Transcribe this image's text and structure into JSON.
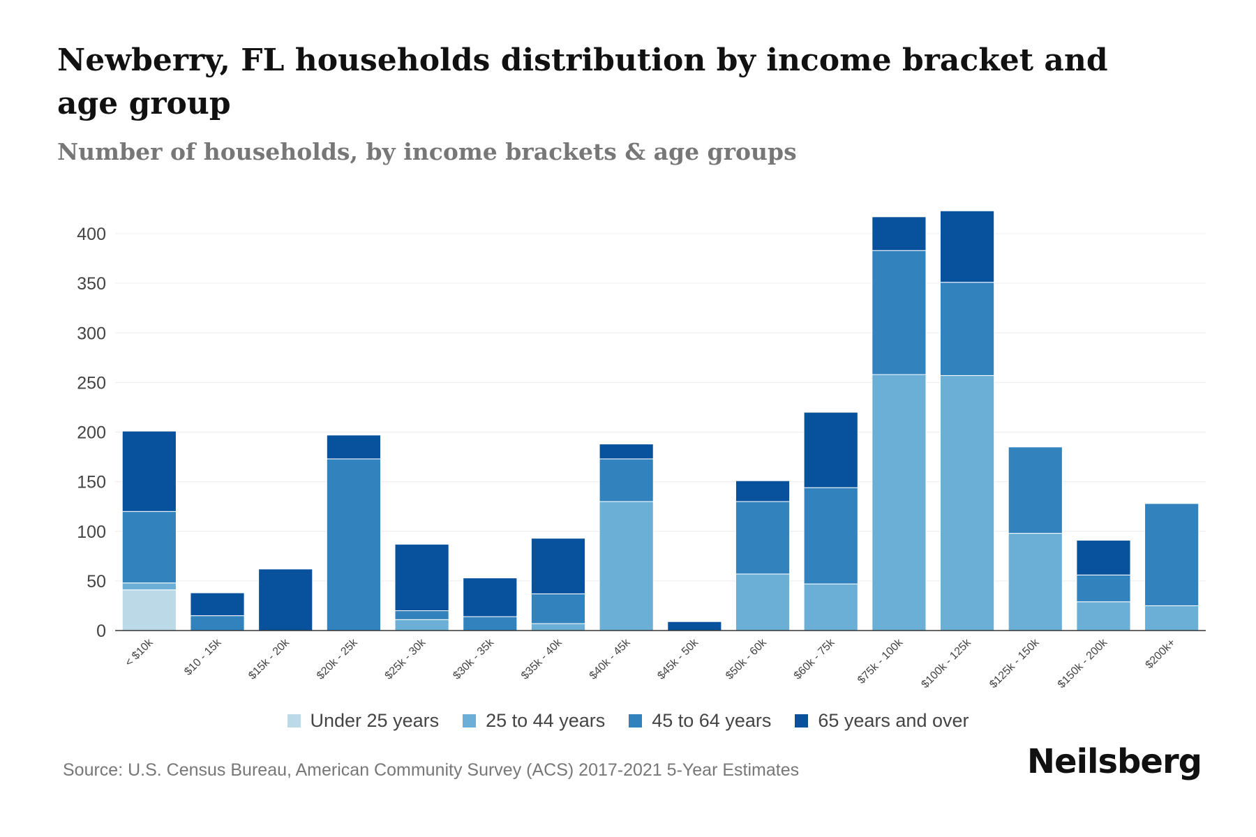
{
  "chart_data": {
    "type": "bar",
    "stacked": true,
    "title": "Newberry, FL households distribution by income bracket and age group",
    "subtitle": "Number of households, by income brackets & age groups",
    "xlabel": "",
    "ylabel": "",
    "ylim": [
      0,
      420
    ],
    "yticks": [
      0,
      50,
      100,
      150,
      200,
      250,
      300,
      350,
      400
    ],
    "grid": true,
    "legend_position": "bottom",
    "categories": [
      "< $10k",
      "$10 - 15k",
      "$15k - 20k",
      "$20k - 25k",
      "$25k - 30k",
      "$30k - 35k",
      "$35k - 40k",
      "$40k - 45k",
      "$45k - 50k",
      "$50k - 60k",
      "$60k - 75k",
      "$75k - 100k",
      "$100k - 125k",
      "$125k - 150k",
      "$150k - 200k",
      "$200k+"
    ],
    "series": [
      {
        "name": "Under 25 years",
        "color": "#bcd9e8",
        "values": [
          41,
          0,
          0,
          0,
          0,
          0,
          0,
          0,
          0,
          0,
          0,
          0,
          0,
          0,
          0,
          0
        ]
      },
      {
        "name": "25 to 44 years",
        "color": "#6baed6",
        "values": [
          7,
          0,
          0,
          0,
          11,
          0,
          7,
          130,
          0,
          57,
          47,
          258,
          257,
          98,
          29,
          25
        ]
      },
      {
        "name": "45 to 64 years",
        "color": "#3182bd",
        "values": [
          72,
          15,
          0,
          173,
          9,
          14,
          30,
          43,
          0,
          73,
          97,
          125,
          94,
          87,
          27,
          103
        ]
      },
      {
        "name": "65 years and over",
        "color": "#08519c",
        "values": [
          81,
          23,
          62,
          24,
          67,
          39,
          56,
          15,
          9,
          21,
          76,
          34,
          72,
          0,
          35,
          0
        ]
      }
    ]
  },
  "footer": {
    "source": "Source: U.S. Census Bureau, American Community Survey (ACS) 2017-2021 5-Year Estimates",
    "brand": "Neilsberg"
  }
}
